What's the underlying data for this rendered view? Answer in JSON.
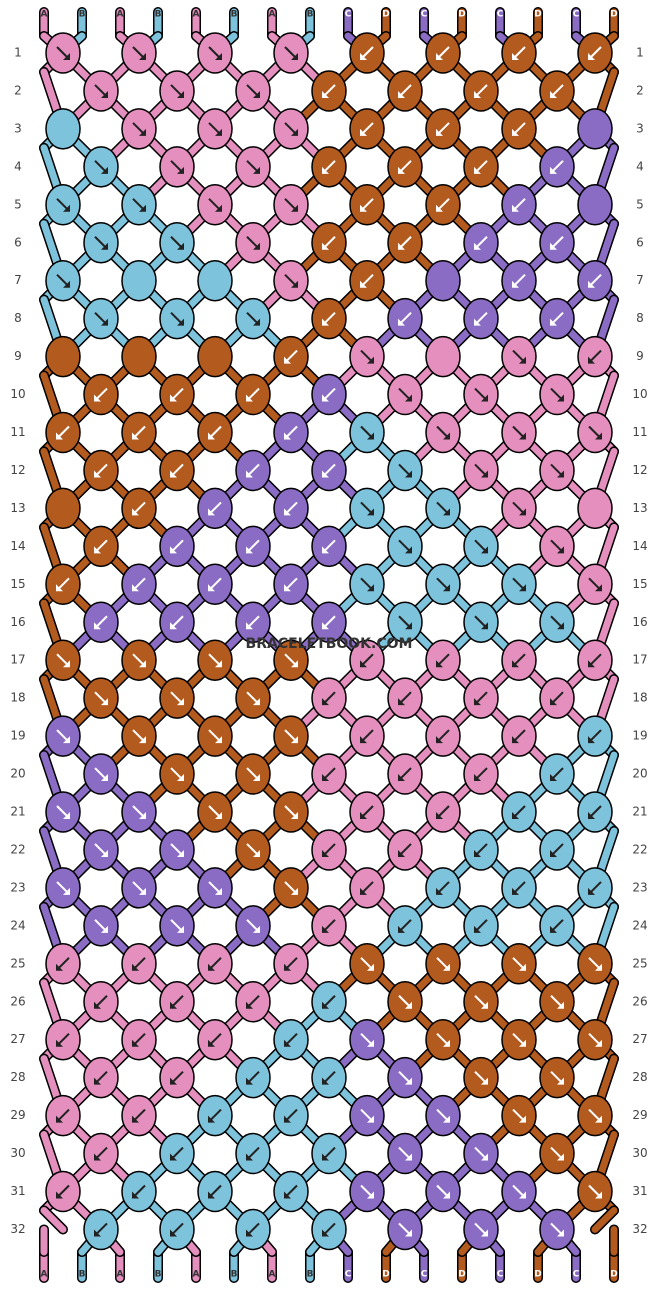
{
  "strings_top": [
    "A",
    "B",
    "A",
    "B",
    "A",
    "B",
    "A",
    "B",
    "C",
    "D",
    "C",
    "D",
    "C",
    "D",
    "C",
    "D"
  ],
  "strings_bottom": [
    "A",
    "B",
    "A",
    "B",
    "A",
    "B",
    "A",
    "B",
    "C",
    "D",
    "C",
    "D",
    "C",
    "D",
    "C",
    "D"
  ],
  "watermark": "BRACELETBOOK.COM",
  "string_colors": {
    "A": "#e48fbd",
    "B": "#7ec3dc",
    "C": "#8b6cc4",
    "D": "#b35a1f"
  },
  "knot_colors": {
    "P": "#e48fbd",
    "B": "#7ec3dc",
    "U": "#8b6cc4",
    "R": "#b35a1f"
  },
  "rows": [
    {
      "number": "1",
      "knots": [
        "P>",
        "P>",
        "P>",
        "P>",
        "R<",
        "R<",
        "R<",
        "R<"
      ]
    },
    {
      "number": "2",
      "knots": [
        "P>",
        "P>",
        "P>",
        "R<",
        "R<",
        "R<",
        "R<"
      ]
    },
    {
      "number": "3",
      "knots": [
        "Bo",
        "P>",
        "P>",
        "P>",
        "R<",
        "R<",
        "R<",
        "Uo"
      ]
    },
    {
      "number": "4",
      "knots": [
        "B>",
        "P>",
        "P>",
        "R<",
        "R<",
        "R<",
        "U<"
      ]
    },
    {
      "number": "5",
      "knots": [
        "B>",
        "B>",
        "P>",
        "P>",
        "R<",
        "R<",
        "U<",
        "Uo"
      ]
    },
    {
      "number": "6",
      "knots": [
        "B>",
        "B>",
        "P>",
        "R<",
        "R<",
        "U<",
        "U<"
      ]
    },
    {
      "number": "7",
      "knots": [
        "B>",
        "Bo",
        "Bo",
        "P>",
        "R<",
        "Uo",
        "U<",
        "U<"
      ]
    },
    {
      "number": "8",
      "knots": [
        "B>",
        "B>",
        "B>",
        "R<",
        "U<",
        "U<",
        "U<"
      ]
    },
    {
      "number": "9",
      "knots": [
        "Ro",
        "Ro",
        "Ro",
        "R<",
        "P>",
        "Po",
        "P>",
        "P<"
      ]
    },
    {
      "number": "10",
      "knots": [
        "R<",
        "R<",
        "R<",
        "U<",
        "P>",
        "P>",
        "P>"
      ]
    },
    {
      "number": "11",
      "knots": [
        "R<",
        "R<",
        "R<",
        "U<",
        "B>",
        "P>",
        "P>",
        "P>"
      ]
    },
    {
      "number": "12",
      "knots": [
        "R<",
        "R<",
        "U<",
        "U<",
        "B>",
        "P>",
        "P>"
      ]
    },
    {
      "number": "13",
      "knots": [
        "Ro",
        "R<",
        "U<",
        "U<",
        "B>",
        "B>",
        "P>",
        "Po"
      ]
    },
    {
      "number": "14",
      "knots": [
        "R<",
        "U<",
        "U<",
        "U<",
        "B>",
        "B>",
        "P>"
      ]
    },
    {
      "number": "15",
      "knots": [
        "R<",
        "U<",
        "U<",
        "U<",
        "B>",
        "B>",
        "B>",
        "P>"
      ]
    },
    {
      "number": "16",
      "knots": [
        "U<",
        "U<",
        "U<",
        "U<",
        "B>",
        "B>",
        "B>"
      ]
    },
    {
      "number": "17",
      "knots": [
        "R>",
        "R>",
        "R>",
        "R>",
        "P<",
        "P<",
        "P<",
        "P<"
      ]
    },
    {
      "number": "18",
      "knots": [
        "R>",
        "R>",
        "R>",
        "P<",
        "P<",
        "P<",
        "P<"
      ]
    },
    {
      "number": "19",
      "knots": [
        "U>",
        "R>",
        "R>",
        "R>",
        "P<",
        "P<",
        "P<",
        "B<"
      ]
    },
    {
      "number": "20",
      "knots": [
        "U>",
        "R>",
        "R>",
        "P<",
        "P<",
        "P<",
        "B<"
      ]
    },
    {
      "number": "21",
      "knots": [
        "U>",
        "U>",
        "R>",
        "R>",
        "P<",
        "P<",
        "B<",
        "B<"
      ]
    },
    {
      "number": "22",
      "knots": [
        "U>",
        "U>",
        "R>",
        "P<",
        "P<",
        "B<",
        "B<"
      ]
    },
    {
      "number": "23",
      "knots": [
        "U>",
        "U>",
        "U>",
        "R>",
        "P<",
        "B<",
        "B<",
        "B<"
      ]
    },
    {
      "number": "24",
      "knots": [
        "U>",
        "U>",
        "U>",
        "P<",
        "B<",
        "B<",
        "B<"
      ]
    },
    {
      "number": "25",
      "knots": [
        "P<",
        "P<",
        "P<",
        "P<",
        "R>",
        "R>",
        "R>",
        "R>"
      ]
    },
    {
      "number": "26",
      "knots": [
        "P<",
        "P<",
        "P<",
        "B<",
        "R>",
        "R>",
        "R>"
      ]
    },
    {
      "number": "27",
      "knots": [
        "P<",
        "P<",
        "P<",
        "B<",
        "U>",
        "R>",
        "R>",
        "R>"
      ]
    },
    {
      "number": "28",
      "knots": [
        "P<",
        "P<",
        "B<",
        "B<",
        "U>",
        "R>",
        "R>"
      ]
    },
    {
      "number": "29",
      "knots": [
        "P<",
        "P<",
        "B<",
        "B<",
        "U>",
        "U>",
        "R>",
        "R>"
      ]
    },
    {
      "number": "30",
      "knots": [
        "P<",
        "B<",
        "B<",
        "B<",
        "U>",
        "U>",
        "R>"
      ]
    },
    {
      "number": "31",
      "knots": [
        "P<",
        "B<",
        "B<",
        "B<",
        "U>",
        "U>",
        "U>",
        "R>"
      ]
    },
    {
      "number": "32",
      "knots": [
        "B<",
        "B<",
        "B<",
        "B<",
        "U>",
        "U>",
        "U>"
      ]
    }
  ]
}
